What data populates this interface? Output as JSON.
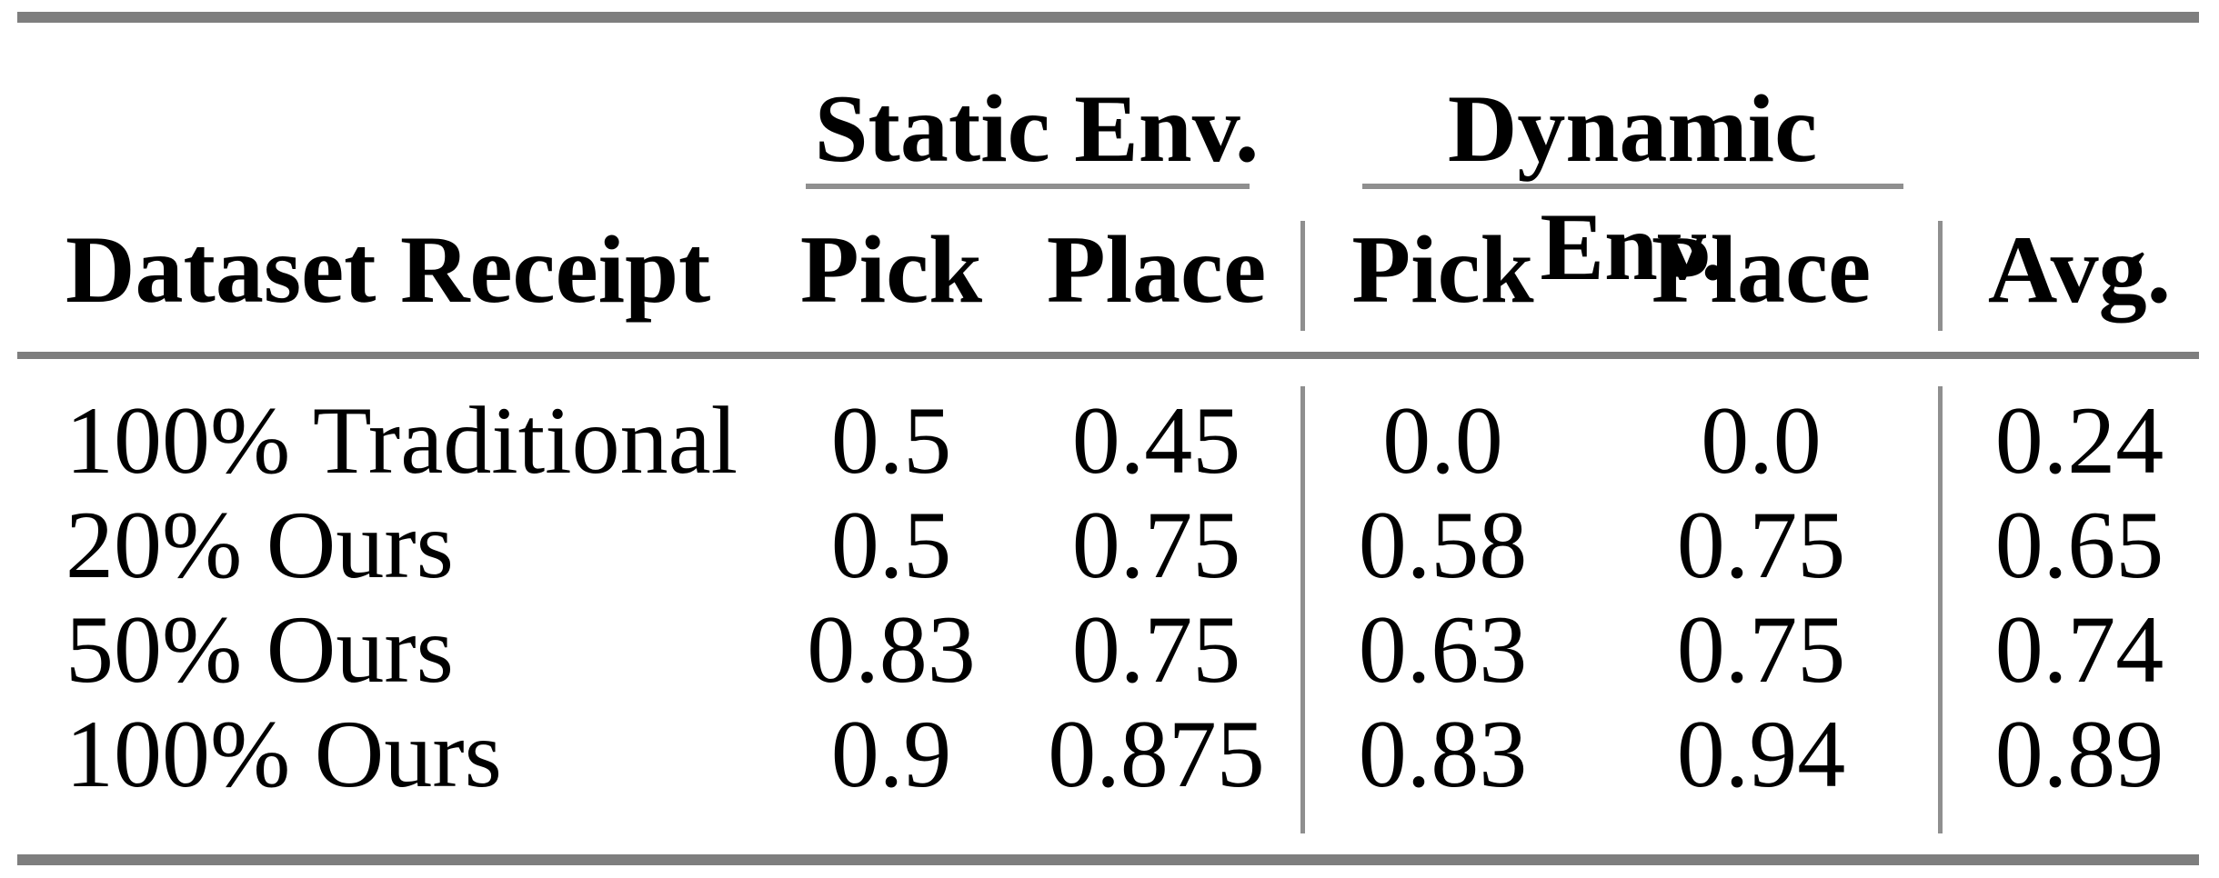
{
  "table": {
    "group_headers": [
      {
        "label": "Static Env."
      },
      {
        "label": "Dynamic Env."
      }
    ],
    "header": {
      "row_label": "Dataset Receipt",
      "static_pick": "Pick",
      "static_place": "Place",
      "dynamic_pick": "Pick",
      "dynamic_place": "Place",
      "avg": "Avg."
    },
    "rows": [
      {
        "cells": [
          "100% Traditional",
          "0.5",
          "0.45",
          "0.0",
          "0.0",
          "0.24"
        ]
      },
      {
        "cells": [
          "20% Ours",
          "0.5",
          "0.75",
          "0.58",
          "0.75",
          "0.65"
        ]
      },
      {
        "cells": [
          "50% Ours",
          "0.83",
          "0.75",
          "0.63",
          "0.75",
          "0.74"
        ]
      },
      {
        "cells": [
          "100% Ours",
          "0.9",
          "0.875",
          "0.83",
          "0.94",
          "0.89"
        ]
      }
    ],
    "colors": {
      "rule_thick": "#7e7e7e",
      "rule_thin": "#8f8f8f",
      "text": "#000000",
      "background": "#ffffff"
    }
  },
  "chart_data": {
    "type": "table",
    "title": "",
    "columns": [
      "Dataset Receipt",
      "Static Env. Pick",
      "Static Env. Place",
      "Dynamic Env. Pick",
      "Dynamic Env. Place",
      "Avg."
    ],
    "rows": [
      [
        "100% Traditional",
        0.5,
        0.45,
        0.0,
        0.0,
        0.24
      ],
      [
        "20% Ours",
        0.5,
        0.75,
        0.58,
        0.75,
        0.65
      ],
      [
        "50% Ours",
        0.83,
        0.75,
        0.63,
        0.75,
        0.74
      ],
      [
        "100% Ours",
        0.9,
        0.875,
        0.83,
        0.94,
        0.89
      ]
    ]
  }
}
